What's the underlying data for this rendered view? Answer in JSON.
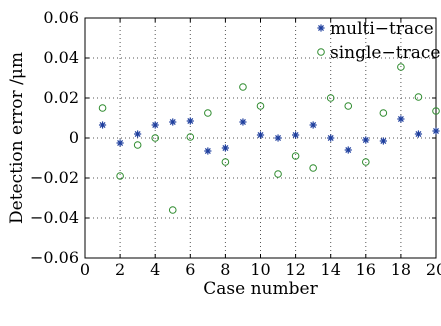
{
  "chart_data": {
    "type": "scatter",
    "title": "",
    "xlabel": "Case number",
    "ylabel": "Detection error /μm",
    "xlim": [
      0,
      20
    ],
    "ylim": [
      -0.06,
      0.06
    ],
    "xticks": [
      0,
      2,
      4,
      6,
      8,
      10,
      12,
      14,
      16,
      18,
      20
    ],
    "yticks": [
      -0.06,
      -0.04,
      -0.02,
      0,
      0.02,
      0.04,
      0.06
    ],
    "xtick_labels": [
      "0",
      "2",
      "4",
      "6",
      "8",
      "10",
      "12",
      "14",
      "16",
      "18",
      "20"
    ],
    "ytick_labels": [
      "−0.06",
      "−0.04",
      "−0.02",
      "0",
      "0.02",
      "0.04",
      "0.06"
    ],
    "grid": true,
    "legend_position": "top-right",
    "series": [
      {
        "name": "multi−trace",
        "marker": "asterisk",
        "color": "#1f3f9e",
        "x": [
          1,
          2,
          3,
          4,
          5,
          6,
          7,
          8,
          9,
          10,
          11,
          12,
          13,
          14,
          15,
          16,
          17,
          18,
          19,
          20
        ],
        "y": [
          0.0065,
          -0.0025,
          0.002,
          0.0065,
          0.008,
          0.0085,
          -0.0065,
          -0.005,
          0.008,
          0.0015,
          0.0,
          0.0015,
          0.0065,
          0.0,
          -0.006,
          -0.001,
          -0.0015,
          0.0095,
          0.002,
          0.0035
        ]
      },
      {
        "name": "single−trace",
        "marker": "circle",
        "color": "#2e8b2e",
        "x": [
          1,
          2,
          3,
          4,
          5,
          6,
          7,
          8,
          9,
          10,
          11,
          12,
          13,
          14,
          15,
          16,
          17,
          18,
          19,
          20
        ],
        "y": [
          0.015,
          -0.019,
          -0.0035,
          0.0,
          -0.036,
          0.0005,
          0.0125,
          -0.012,
          0.0255,
          0.016,
          -0.018,
          -0.009,
          -0.015,
          0.02,
          0.016,
          -0.012,
          0.0125,
          0.0355,
          0.0205,
          0.0135
        ]
      }
    ]
  }
}
